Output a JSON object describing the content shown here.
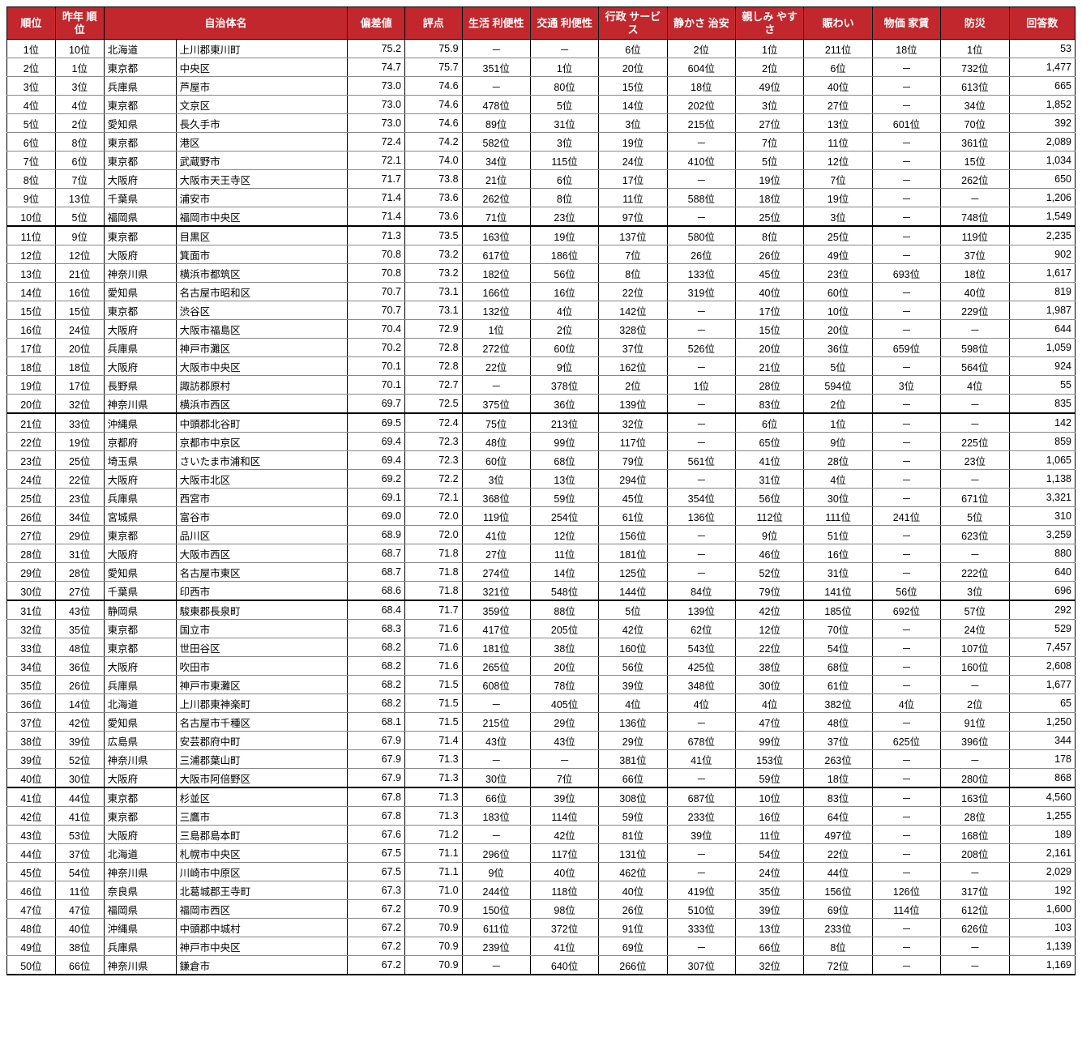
{
  "headers": {
    "rank": "順位",
    "prev": "昨年\n順位",
    "name": "自治体名",
    "dev": "偏差値",
    "score": "評点",
    "c1": "生活\n利便性",
    "c2": "交通\n利便性",
    "c3": "行政\nサービス",
    "c4": "静かさ\n治安",
    "c5": "親しみ\nやすさ",
    "c6": "賑わい",
    "c7": "物価\n家賃",
    "c8": "防災",
    "resp": "回答数"
  },
  "rows": [
    {
      "rank": "1位",
      "prev": "10位",
      "pref": "北海道",
      "city": "上川郡東川町",
      "dev": "75.2",
      "score": "75.9",
      "c1": "－",
      "c2": "－",
      "c3": "6位",
      "c4": "2位",
      "c5": "1位",
      "c6": "211位",
      "c7": "18位",
      "c8": "1位",
      "resp": "53"
    },
    {
      "rank": "2位",
      "prev": "1位",
      "pref": "東京都",
      "city": "中央区",
      "dev": "74.7",
      "score": "75.7",
      "c1": "351位",
      "c2": "1位",
      "c3": "20位",
      "c4": "604位",
      "c5": "2位",
      "c6": "6位",
      "c7": "－",
      "c8": "732位",
      "resp": "1,477"
    },
    {
      "rank": "3位",
      "prev": "3位",
      "pref": "兵庫県",
      "city": "芦屋市",
      "dev": "73.0",
      "score": "74.6",
      "c1": "－",
      "c2": "80位",
      "c3": "15位",
      "c4": "18位",
      "c5": "49位",
      "c6": "40位",
      "c7": "－",
      "c8": "613位",
      "resp": "665"
    },
    {
      "rank": "4位",
      "prev": "4位",
      "pref": "東京都",
      "city": "文京区",
      "dev": "73.0",
      "score": "74.6",
      "c1": "478位",
      "c2": "5位",
      "c3": "14位",
      "c4": "202位",
      "c5": "3位",
      "c6": "27位",
      "c7": "－",
      "c8": "34位",
      "resp": "1,852"
    },
    {
      "rank": "5位",
      "prev": "2位",
      "pref": "愛知県",
      "city": "長久手市",
      "dev": "73.0",
      "score": "74.6",
      "c1": "89位",
      "c2": "31位",
      "c3": "3位",
      "c4": "215位",
      "c5": "27位",
      "c6": "13位",
      "c7": "601位",
      "c8": "70位",
      "resp": "392"
    },
    {
      "rank": "6位",
      "prev": "8位",
      "pref": "東京都",
      "city": "港区",
      "dev": "72.4",
      "score": "74.2",
      "c1": "582位",
      "c2": "3位",
      "c3": "19位",
      "c4": "－",
      "c5": "7位",
      "c6": "11位",
      "c7": "－",
      "c8": "361位",
      "resp": "2,089"
    },
    {
      "rank": "7位",
      "prev": "6位",
      "pref": "東京都",
      "city": "武蔵野市",
      "dev": "72.1",
      "score": "74.0",
      "c1": "34位",
      "c2": "115位",
      "c3": "24位",
      "c4": "410位",
      "c5": "5位",
      "c6": "12位",
      "c7": "－",
      "c8": "15位",
      "resp": "1,034"
    },
    {
      "rank": "8位",
      "prev": "7位",
      "pref": "大阪府",
      "city": "大阪市天王寺区",
      "dev": "71.7",
      "score": "73.8",
      "c1": "21位",
      "c2": "6位",
      "c3": "17位",
      "c4": "－",
      "c5": "19位",
      "c6": "7位",
      "c7": "－",
      "c8": "262位",
      "resp": "650"
    },
    {
      "rank": "9位",
      "prev": "13位",
      "pref": "千葉県",
      "city": "浦安市",
      "dev": "71.4",
      "score": "73.6",
      "c1": "262位",
      "c2": "8位",
      "c3": "11位",
      "c4": "588位",
      "c5": "18位",
      "c6": "19位",
      "c7": "－",
      "c8": "－",
      "resp": "1,206"
    },
    {
      "rank": "10位",
      "prev": "5位",
      "pref": "福岡県",
      "city": "福岡市中央区",
      "dev": "71.4",
      "score": "73.6",
      "c1": "71位",
      "c2": "23位",
      "c3": "97位",
      "c4": "－",
      "c5": "25位",
      "c6": "3位",
      "c7": "－",
      "c8": "748位",
      "resp": "1,549"
    },
    {
      "rank": "11位",
      "prev": "9位",
      "pref": "東京都",
      "city": "目黒区",
      "dev": "71.3",
      "score": "73.5",
      "c1": "163位",
      "c2": "19位",
      "c3": "137位",
      "c4": "580位",
      "c5": "8位",
      "c6": "25位",
      "c7": "－",
      "c8": "119位",
      "resp": "2,235"
    },
    {
      "rank": "12位",
      "prev": "12位",
      "pref": "大阪府",
      "city": "箕面市",
      "dev": "70.8",
      "score": "73.2",
      "c1": "617位",
      "c2": "186位",
      "c3": "7位",
      "c4": "26位",
      "c5": "26位",
      "c6": "49位",
      "c7": "－",
      "c8": "37位",
      "resp": "902"
    },
    {
      "rank": "13位",
      "prev": "21位",
      "pref": "神奈川県",
      "city": "横浜市都筑区",
      "dev": "70.8",
      "score": "73.2",
      "c1": "182位",
      "c2": "56位",
      "c3": "8位",
      "c4": "133位",
      "c5": "45位",
      "c6": "23位",
      "c7": "693位",
      "c8": "18位",
      "resp": "1,617"
    },
    {
      "rank": "14位",
      "prev": "16位",
      "pref": "愛知県",
      "city": "名古屋市昭和区",
      "dev": "70.7",
      "score": "73.1",
      "c1": "166位",
      "c2": "16位",
      "c3": "22位",
      "c4": "319位",
      "c5": "40位",
      "c6": "60位",
      "c7": "－",
      "c8": "40位",
      "resp": "819"
    },
    {
      "rank": "15位",
      "prev": "15位",
      "pref": "東京都",
      "city": "渋谷区",
      "dev": "70.7",
      "score": "73.1",
      "c1": "132位",
      "c2": "4位",
      "c3": "142位",
      "c4": "－",
      "c5": "17位",
      "c6": "10位",
      "c7": "－",
      "c8": "229位",
      "resp": "1,987"
    },
    {
      "rank": "16位",
      "prev": "24位",
      "pref": "大阪府",
      "city": "大阪市福島区",
      "dev": "70.4",
      "score": "72.9",
      "c1": "1位",
      "c2": "2位",
      "c3": "328位",
      "c4": "－",
      "c5": "15位",
      "c6": "20位",
      "c7": "－",
      "c8": "－",
      "resp": "644"
    },
    {
      "rank": "17位",
      "prev": "20位",
      "pref": "兵庫県",
      "city": "神戸市灘区",
      "dev": "70.2",
      "score": "72.8",
      "c1": "272位",
      "c2": "60位",
      "c3": "37位",
      "c4": "526位",
      "c5": "20位",
      "c6": "36位",
      "c7": "659位",
      "c8": "598位",
      "resp": "1,059"
    },
    {
      "rank": "18位",
      "prev": "18位",
      "pref": "大阪府",
      "city": "大阪市中央区",
      "dev": "70.1",
      "score": "72.8",
      "c1": "22位",
      "c2": "9位",
      "c3": "162位",
      "c4": "－",
      "c5": "21位",
      "c6": "5位",
      "c7": "－",
      "c8": "564位",
      "resp": "924"
    },
    {
      "rank": "19位",
      "prev": "17位",
      "pref": "長野県",
      "city": "諏訪郡原村",
      "dev": "70.1",
      "score": "72.7",
      "c1": "－",
      "c2": "378位",
      "c3": "2位",
      "c4": "1位",
      "c5": "28位",
      "c6": "594位",
      "c7": "3位",
      "c8": "4位",
      "resp": "55"
    },
    {
      "rank": "20位",
      "prev": "32位",
      "pref": "神奈川県",
      "city": "横浜市西区",
      "dev": "69.7",
      "score": "72.5",
      "c1": "375位",
      "c2": "36位",
      "c3": "139位",
      "c4": "－",
      "c5": "83位",
      "c6": "2位",
      "c7": "－",
      "c8": "－",
      "resp": "835"
    },
    {
      "rank": "21位",
      "prev": "33位",
      "pref": "沖縄県",
      "city": "中頭郡北谷町",
      "dev": "69.5",
      "score": "72.4",
      "c1": "75位",
      "c2": "213位",
      "c3": "32位",
      "c4": "－",
      "c5": "6位",
      "c6": "1位",
      "c7": "－",
      "c8": "－",
      "resp": "142"
    },
    {
      "rank": "22位",
      "prev": "19位",
      "pref": "京都府",
      "city": "京都市中京区",
      "dev": "69.4",
      "score": "72.3",
      "c1": "48位",
      "c2": "99位",
      "c3": "117位",
      "c4": "－",
      "c5": "65位",
      "c6": "9位",
      "c7": "－",
      "c8": "225位",
      "resp": "859"
    },
    {
      "rank": "23位",
      "prev": "25位",
      "pref": "埼玉県",
      "city": "さいたま市浦和区",
      "dev": "69.4",
      "score": "72.3",
      "c1": "60位",
      "c2": "68位",
      "c3": "79位",
      "c4": "561位",
      "c5": "41位",
      "c6": "28位",
      "c7": "－",
      "c8": "23位",
      "resp": "1,065"
    },
    {
      "rank": "24位",
      "prev": "22位",
      "pref": "大阪府",
      "city": "大阪市北区",
      "dev": "69.2",
      "score": "72.2",
      "c1": "3位",
      "c2": "13位",
      "c3": "294位",
      "c4": "－",
      "c5": "31位",
      "c6": "4位",
      "c7": "－",
      "c8": "－",
      "resp": "1,138"
    },
    {
      "rank": "25位",
      "prev": "23位",
      "pref": "兵庫県",
      "city": "西宮市",
      "dev": "69.1",
      "score": "72.1",
      "c1": "368位",
      "c2": "59位",
      "c3": "45位",
      "c4": "354位",
      "c5": "56位",
      "c6": "30位",
      "c7": "－",
      "c8": "671位",
      "resp": "3,321"
    },
    {
      "rank": "26位",
      "prev": "34位",
      "pref": "宮城県",
      "city": "富谷市",
      "dev": "69.0",
      "score": "72.0",
      "c1": "119位",
      "c2": "254位",
      "c3": "61位",
      "c4": "136位",
      "c5": "112位",
      "c6": "111位",
      "c7": "241位",
      "c8": "5位",
      "resp": "310"
    },
    {
      "rank": "27位",
      "prev": "29位",
      "pref": "東京都",
      "city": "品川区",
      "dev": "68.9",
      "score": "72.0",
      "c1": "41位",
      "c2": "12位",
      "c3": "156位",
      "c4": "－",
      "c5": "9位",
      "c6": "51位",
      "c7": "－",
      "c8": "623位",
      "resp": "3,259"
    },
    {
      "rank": "28位",
      "prev": "31位",
      "pref": "大阪府",
      "city": "大阪市西区",
      "dev": "68.7",
      "score": "71.8",
      "c1": "27位",
      "c2": "11位",
      "c3": "181位",
      "c4": "－",
      "c5": "46位",
      "c6": "16位",
      "c7": "－",
      "c8": "－",
      "resp": "880"
    },
    {
      "rank": "29位",
      "prev": "28位",
      "pref": "愛知県",
      "city": "名古屋市東区",
      "dev": "68.7",
      "score": "71.8",
      "c1": "274位",
      "c2": "14位",
      "c3": "125位",
      "c4": "－",
      "c5": "52位",
      "c6": "31位",
      "c7": "－",
      "c8": "222位",
      "resp": "640"
    },
    {
      "rank": "30位",
      "prev": "27位",
      "pref": "千葉県",
      "city": "印西市",
      "dev": "68.6",
      "score": "71.8",
      "c1": "321位",
      "c2": "548位",
      "c3": "144位",
      "c4": "84位",
      "c5": "79位",
      "c6": "141位",
      "c7": "56位",
      "c8": "3位",
      "resp": "696"
    },
    {
      "rank": "31位",
      "prev": "43位",
      "pref": "静岡県",
      "city": "駿東郡長泉町",
      "dev": "68.4",
      "score": "71.7",
      "c1": "359位",
      "c2": "88位",
      "c3": "5位",
      "c4": "139位",
      "c5": "42位",
      "c6": "185位",
      "c7": "692位",
      "c8": "57位",
      "resp": "292"
    },
    {
      "rank": "32位",
      "prev": "35位",
      "pref": "東京都",
      "city": "国立市",
      "dev": "68.3",
      "score": "71.6",
      "c1": "417位",
      "c2": "205位",
      "c3": "42位",
      "c4": "62位",
      "c5": "12位",
      "c6": "70位",
      "c7": "－",
      "c8": "24位",
      "resp": "529"
    },
    {
      "rank": "33位",
      "prev": "48位",
      "pref": "東京都",
      "city": "世田谷区",
      "dev": "68.2",
      "score": "71.6",
      "c1": "181位",
      "c2": "38位",
      "c3": "160位",
      "c4": "543位",
      "c5": "22位",
      "c6": "54位",
      "c7": "－",
      "c8": "107位",
      "resp": "7,457"
    },
    {
      "rank": "34位",
      "prev": "36位",
      "pref": "大阪府",
      "city": "吹田市",
      "dev": "68.2",
      "score": "71.6",
      "c1": "265位",
      "c2": "20位",
      "c3": "56位",
      "c4": "425位",
      "c5": "38位",
      "c6": "68位",
      "c7": "－",
      "c8": "160位",
      "resp": "2,608"
    },
    {
      "rank": "35位",
      "prev": "26位",
      "pref": "兵庫県",
      "city": "神戸市東灘区",
      "dev": "68.2",
      "score": "71.5",
      "c1": "608位",
      "c2": "78位",
      "c3": "39位",
      "c4": "348位",
      "c5": "30位",
      "c6": "61位",
      "c7": "－",
      "c8": "－",
      "resp": "1,677"
    },
    {
      "rank": "36位",
      "prev": "14位",
      "pref": "北海道",
      "city": "上川郡東神楽町",
      "dev": "68.2",
      "score": "71.5",
      "c1": "－",
      "c2": "405位",
      "c3": "4位",
      "c4": "4位",
      "c5": "4位",
      "c6": "382位",
      "c7": "4位",
      "c8": "2位",
      "resp": "65"
    },
    {
      "rank": "37位",
      "prev": "42位",
      "pref": "愛知県",
      "city": "名古屋市千種区",
      "dev": "68.1",
      "score": "71.5",
      "c1": "215位",
      "c2": "29位",
      "c3": "136位",
      "c4": "－",
      "c5": "47位",
      "c6": "48位",
      "c7": "－",
      "c8": "91位",
      "resp": "1,250"
    },
    {
      "rank": "38位",
      "prev": "39位",
      "pref": "広島県",
      "city": "安芸郡府中町",
      "dev": "67.9",
      "score": "71.4",
      "c1": "43位",
      "c2": "43位",
      "c3": "29位",
      "c4": "678位",
      "c5": "99位",
      "c6": "37位",
      "c7": "625位",
      "c8": "396位",
      "resp": "344"
    },
    {
      "rank": "39位",
      "prev": "52位",
      "pref": "神奈川県",
      "city": "三浦郡葉山町",
      "dev": "67.9",
      "score": "71.3",
      "c1": "－",
      "c2": "－",
      "c3": "381位",
      "c4": "41位",
      "c5": "153位",
      "c6": "263位",
      "c7": "－",
      "c8": "－",
      "resp": "178"
    },
    {
      "rank": "40位",
      "prev": "30位",
      "pref": "大阪府",
      "city": "大阪市阿倍野区",
      "dev": "67.9",
      "score": "71.3",
      "c1": "30位",
      "c2": "7位",
      "c3": "66位",
      "c4": "－",
      "c5": "59位",
      "c6": "18位",
      "c7": "－",
      "c8": "280位",
      "resp": "868"
    },
    {
      "rank": "41位",
      "prev": "44位",
      "pref": "東京都",
      "city": "杉並区",
      "dev": "67.8",
      "score": "71.3",
      "c1": "66位",
      "c2": "39位",
      "c3": "308位",
      "c4": "687位",
      "c5": "10位",
      "c6": "83位",
      "c7": "－",
      "c8": "163位",
      "resp": "4,560"
    },
    {
      "rank": "42位",
      "prev": "41位",
      "pref": "東京都",
      "city": "三鷹市",
      "dev": "67.8",
      "score": "71.3",
      "c1": "183位",
      "c2": "114位",
      "c3": "59位",
      "c4": "233位",
      "c5": "16位",
      "c6": "64位",
      "c7": "－",
      "c8": "28位",
      "resp": "1,255"
    },
    {
      "rank": "43位",
      "prev": "53位",
      "pref": "大阪府",
      "city": "三島郡島本町",
      "dev": "67.6",
      "score": "71.2",
      "c1": "－",
      "c2": "42位",
      "c3": "81位",
      "c4": "39位",
      "c5": "11位",
      "c6": "497位",
      "c7": "－",
      "c8": "168位",
      "resp": "189"
    },
    {
      "rank": "44位",
      "prev": "37位",
      "pref": "北海道",
      "city": "札幌市中央区",
      "dev": "67.5",
      "score": "71.1",
      "c1": "296位",
      "c2": "117位",
      "c3": "131位",
      "c4": "－",
      "c5": "54位",
      "c6": "22位",
      "c7": "－",
      "c8": "208位",
      "resp": "2,161"
    },
    {
      "rank": "45位",
      "prev": "54位",
      "pref": "神奈川県",
      "city": "川崎市中原区",
      "dev": "67.5",
      "score": "71.1",
      "c1": "9位",
      "c2": "40位",
      "c3": "462位",
      "c4": "－",
      "c5": "24位",
      "c6": "44位",
      "c7": "－",
      "c8": "－",
      "resp": "2,029"
    },
    {
      "rank": "46位",
      "prev": "11位",
      "pref": "奈良県",
      "city": "北葛城郡王寺町",
      "dev": "67.3",
      "score": "71.0",
      "c1": "244位",
      "c2": "118位",
      "c3": "40位",
      "c4": "419位",
      "c5": "35位",
      "c6": "156位",
      "c7": "126位",
      "c8": "317位",
      "resp": "192"
    },
    {
      "rank": "47位",
      "prev": "47位",
      "pref": "福岡県",
      "city": "福岡市西区",
      "dev": "67.2",
      "score": "70.9",
      "c1": "150位",
      "c2": "98位",
      "c3": "26位",
      "c4": "510位",
      "c5": "39位",
      "c6": "69位",
      "c7": "114位",
      "c8": "612位",
      "resp": "1,600"
    },
    {
      "rank": "48位",
      "prev": "40位",
      "pref": "沖縄県",
      "city": "中頭郡中城村",
      "dev": "67.2",
      "score": "70.9",
      "c1": "611位",
      "c2": "372位",
      "c3": "91位",
      "c4": "333位",
      "c5": "13位",
      "c6": "233位",
      "c7": "－",
      "c8": "626位",
      "resp": "103"
    },
    {
      "rank": "49位",
      "prev": "38位",
      "pref": "兵庫県",
      "city": "神戸市中央区",
      "dev": "67.2",
      "score": "70.9",
      "c1": "239位",
      "c2": "41位",
      "c3": "69位",
      "c4": "－",
      "c5": "66位",
      "c6": "8位",
      "c7": "－",
      "c8": "－",
      "resp": "1,139"
    },
    {
      "rank": "50位",
      "prev": "66位",
      "pref": "神奈川県",
      "city": "鎌倉市",
      "dev": "67.2",
      "score": "70.9",
      "c1": "－",
      "c2": "640位",
      "c3": "266位",
      "c4": "307位",
      "c5": "32位",
      "c6": "72位",
      "c7": "－",
      "c8": "－",
      "resp": "1,169"
    }
  ]
}
